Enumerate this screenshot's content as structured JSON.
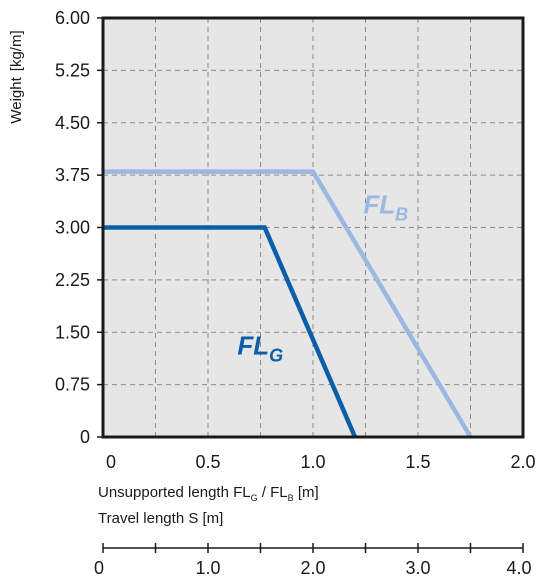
{
  "chart_data": {
    "type": "line",
    "ylabel_main": "Weight",
    "ylabel_unit": "[kg/m]",
    "xlabel_line1_prefix": "Unsupported length FL",
    "xlabel_line1_sub1": "G",
    "xlabel_line1_mid": " / FL",
    "xlabel_line1_sub2": "B",
    "xlabel_line1_unit": " [m]",
    "xlabel_line2": "Travel length S  [m]",
    "xlim": [
      0,
      2.0
    ],
    "ylim": [
      0,
      6.0
    ],
    "y_ticks": [
      0,
      0.75,
      1.5,
      2.25,
      3.0,
      3.75,
      4.5,
      5.25,
      6.0
    ],
    "y_tick_labels": [
      "0",
      "0.75",
      "1.50",
      "2.25",
      "3.00",
      "3.75",
      "4.50",
      "5.25",
      "6.00"
    ],
    "x_ticks": [
      0,
      0.5,
      1.0,
      1.5,
      2.0
    ],
    "x_tick_labels": [
      "0",
      "0.5",
      "1.0",
      "1.5",
      "2.0"
    ],
    "x_minor_grid": [
      0.25,
      0.75,
      1.25,
      1.75
    ],
    "secondary_axis": {
      "labels": [
        "0",
        "1.0",
        "2.0",
        "3.0",
        "4.0"
      ],
      "values": [
        0,
        1.0,
        2.0,
        3.0,
        4.0
      ],
      "range": [
        0,
        4.0
      ]
    },
    "grid": true,
    "series": [
      {
        "name": "FL",
        "name_sub": "B",
        "color": "#9ab8e2",
        "x": [
          0,
          1.0,
          1.75
        ],
        "y": [
          3.8,
          3.8,
          0
        ]
      },
      {
        "name": "FL",
        "name_sub": "G",
        "color": "#0a5fa8",
        "x": [
          0,
          0.77,
          1.2
        ],
        "y": [
          3.0,
          3.0,
          0
        ]
      }
    ]
  }
}
